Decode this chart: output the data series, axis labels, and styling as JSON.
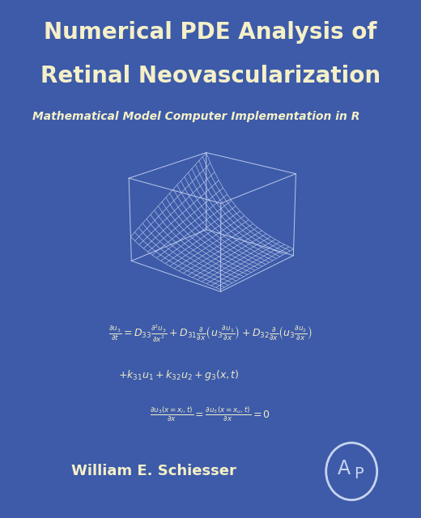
{
  "bg_color": "#3d5ba9",
  "title_line1": "Numerical PDE Analysis of",
  "title_line2": "Retinal Neovascularization",
  "subtitle": "Mathematical Model Computer Implementation in R",
  "author": "William E. Schiesser",
  "title_color": "#f5f0c8",
  "subtitle_color": "#f5f0c8",
  "author_color": "#f5f0c8",
  "eq_color": "#f0ecc8",
  "surface_color": "#c8d4f0",
  "ap_logo_color": "#c8d4f0",
  "title_fontsize": 20,
  "subtitle_fontsize": 10,
  "author_fontsize": 13,
  "eq_fontsize": 9
}
